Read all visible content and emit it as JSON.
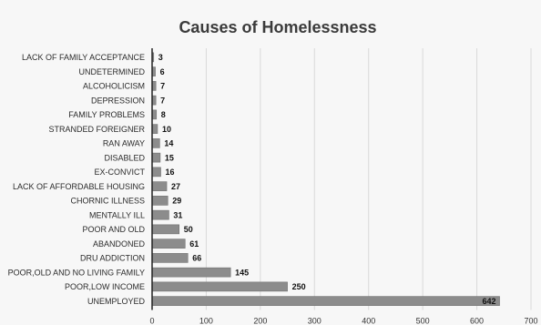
{
  "chart_data": {
    "type": "bar",
    "orientation": "horizontal",
    "title": "Causes of Homelessness",
    "categories": [
      "LACK OF FAMILY ACCEPTANCE",
      "UNDETERMINED",
      "ALCOHOLICISM",
      "DEPRESSION",
      "FAMILY PROBLEMS",
      "STRANDED FOREIGNER",
      "RAN AWAY",
      "DISABLED",
      "EX-CONVICT",
      "LACK OF AFFORDABLE HOUSING",
      "CHORNIC ILLNESS",
      "MENTALLY ILL",
      "POOR AND OLD",
      "ABANDONED",
      "DRU ADDICTION",
      "POOR,OLD AND NO LIVING FAMILY",
      "POOR,LOW INCOME",
      "UNEMPLOYED"
    ],
    "values": [
      3,
      6,
      7,
      7,
      8,
      10,
      14,
      15,
      16,
      27,
      29,
      31,
      50,
      61,
      66,
      145,
      250,
      642
    ],
    "xlim": [
      0,
      700
    ],
    "x_ticks": [
      0,
      100,
      200,
      300,
      400,
      500,
      600,
      700
    ],
    "grid": true,
    "legend": "none",
    "colors": {
      "bar": "#8c8c8c",
      "bar_edge": "#6f6f6f",
      "grid": "#d9d9d9",
      "axis": "#222222"
    }
  }
}
